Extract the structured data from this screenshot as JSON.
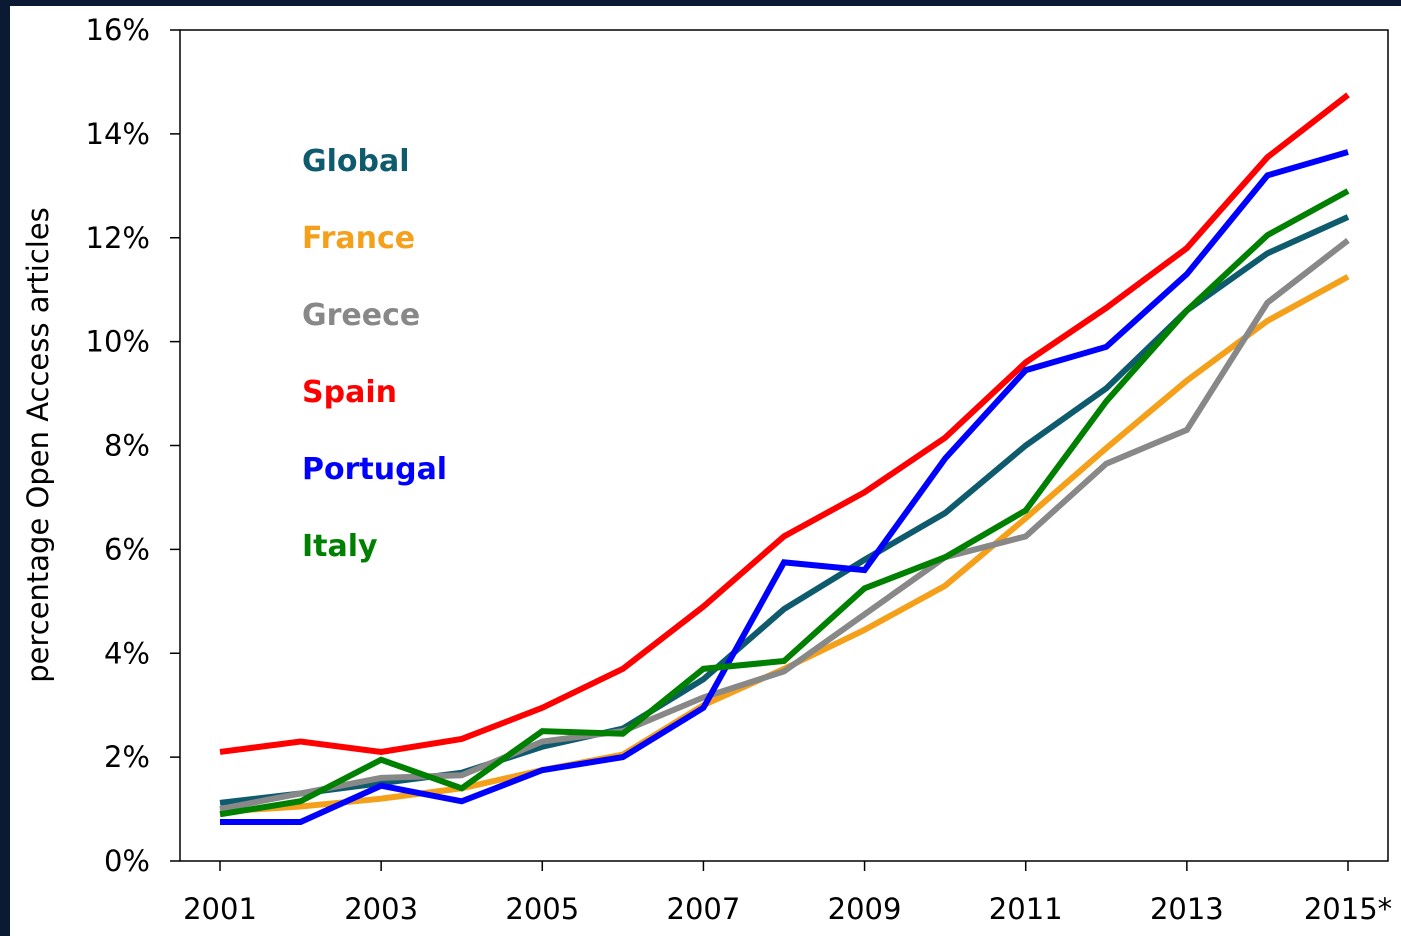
{
  "chart_data": {
    "type": "line",
    "y_label": "percentage Open Access articles",
    "categories": [
      "2001",
      null,
      "2003",
      null,
      "2005",
      null,
      "2007",
      null,
      "2009",
      null,
      "2011",
      null,
      "2013",
      null,
      "2015*"
    ],
    "ylim": [
      0,
      16
    ],
    "yticks": [
      {
        "value": 0,
        "label": "0%"
      },
      {
        "value": 2,
        "label": "2%"
      },
      {
        "value": 4,
        "label": "4%"
      },
      {
        "value": 6,
        "label": "6%"
      },
      {
        "value": 8,
        "label": "8%"
      },
      {
        "value": 10,
        "label": "10%"
      },
      {
        "value": 12,
        "label": "12%"
      },
      {
        "value": 14,
        "label": "14%"
      },
      {
        "value": 16,
        "label": "16%"
      }
    ],
    "series": [
      {
        "name": "Global",
        "color": "#0f5b6e",
        "values": [
          1.12,
          1.3,
          1.5,
          1.7,
          2.2,
          2.55,
          3.5,
          4.85,
          5.8,
          6.7,
          8.0,
          9.1,
          10.6,
          11.7,
          12.4
        ]
      },
      {
        "name": "France",
        "color": "#f5a01a",
        "values": [
          0.95,
          1.05,
          1.2,
          1.4,
          1.75,
          2.05,
          3.0,
          3.7,
          4.45,
          5.3,
          6.6,
          7.95,
          9.25,
          10.4,
          11.25
        ]
      },
      {
        "name": "Greece",
        "color": "#888888",
        "values": [
          1.0,
          1.3,
          1.6,
          1.65,
          2.3,
          2.5,
          3.15,
          3.65,
          4.75,
          5.85,
          6.25,
          7.65,
          8.3,
          10.75,
          11.95
        ]
      },
      {
        "name": "Spain",
        "color": "#ff0000",
        "values": [
          2.1,
          2.3,
          2.1,
          2.35,
          2.95,
          3.7,
          4.9,
          6.25,
          7.1,
          8.15,
          9.6,
          10.65,
          11.8,
          13.55,
          14.75
        ]
      },
      {
        "name": "Portugal",
        "color": "#0000ff",
        "values": [
          0.75,
          0.75,
          1.45,
          1.15,
          1.75,
          2.0,
          2.95,
          5.75,
          5.6,
          7.75,
          9.45,
          9.9,
          11.3,
          13.2,
          13.65
        ]
      },
      {
        "name": "Italy",
        "color": "#008000",
        "values": [
          0.9,
          1.15,
          1.95,
          1.4,
          2.5,
          2.45,
          3.7,
          3.85,
          5.25,
          5.85,
          6.75,
          8.85,
          10.6,
          12.05,
          12.9
        ]
      }
    ]
  }
}
